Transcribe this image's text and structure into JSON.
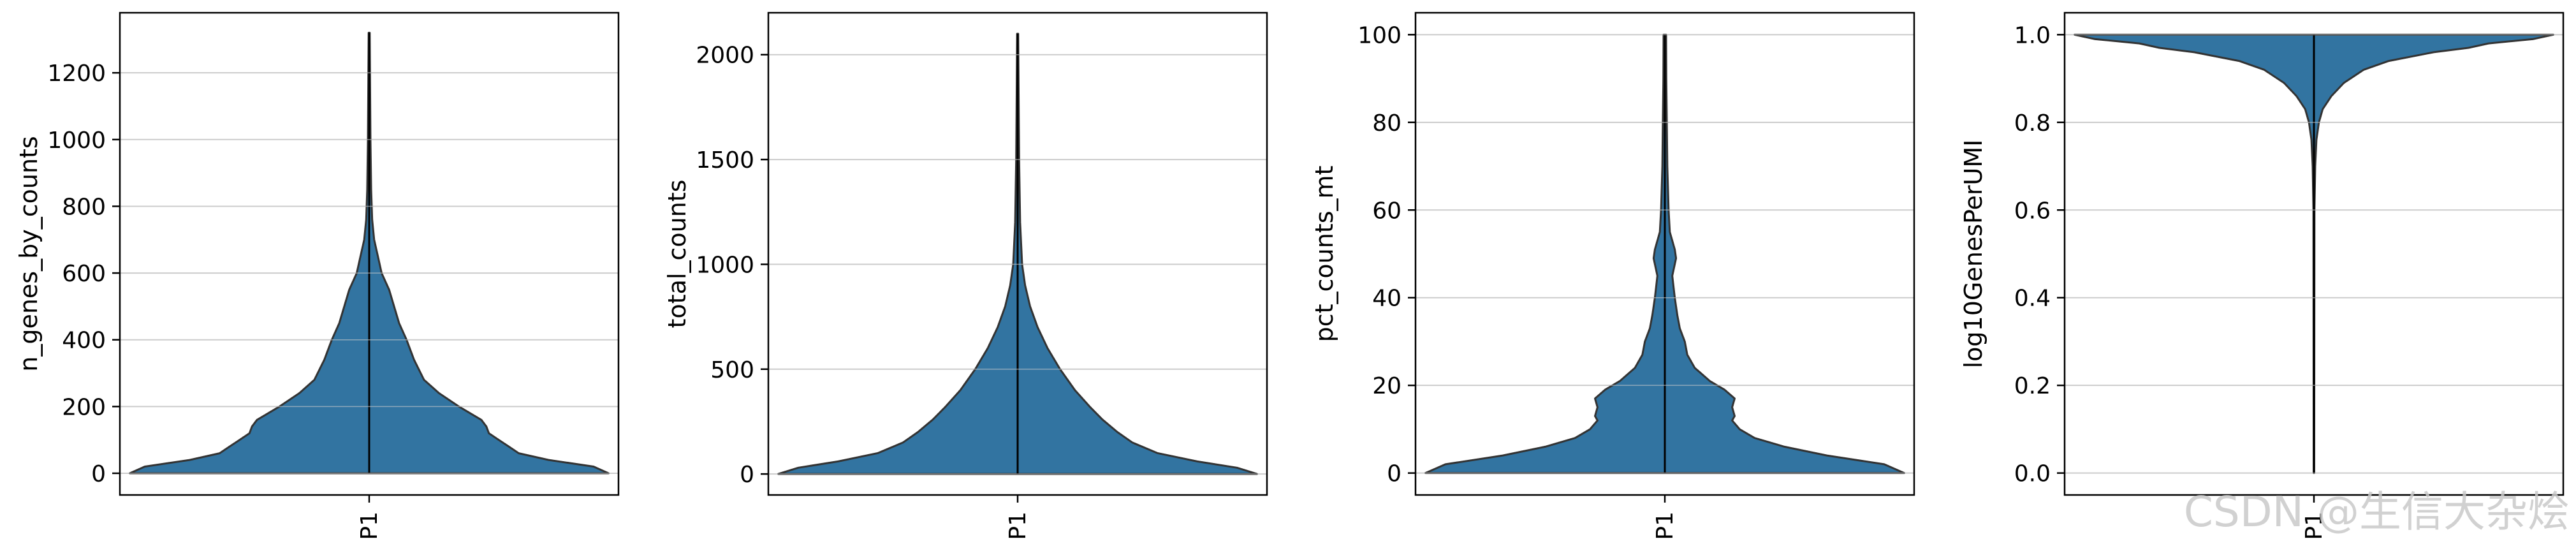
{
  "watermark": "CSDN @生信大杂烩",
  "colors": {
    "violin_fill": "#3274a1",
    "violin_edge": "#333333",
    "grid": "#cccccc",
    "axis": "#000000"
  },
  "chart_data": [
    {
      "type": "violin",
      "ylabel": "n_genes_by_counts",
      "categories": [
        "P1"
      ],
      "ylim": [
        -65,
        1380
      ],
      "yticks": [
        0,
        200,
        400,
        600,
        800,
        1000,
        1200
      ],
      "grid": true,
      "range": [
        0,
        1320
      ],
      "density": [
        [
          0,
          0.96
        ],
        [
          20,
          0.9
        ],
        [
          40,
          0.72
        ],
        [
          60,
          0.6
        ],
        [
          80,
          0.56
        ],
        [
          100,
          0.52
        ],
        [
          120,
          0.48
        ],
        [
          140,
          0.47
        ],
        [
          160,
          0.45
        ],
        [
          200,
          0.36
        ],
        [
          240,
          0.28
        ],
        [
          280,
          0.22
        ],
        [
          340,
          0.18
        ],
        [
          400,
          0.15
        ],
        [
          450,
          0.12
        ],
        [
          500,
          0.1
        ],
        [
          550,
          0.08
        ],
        [
          600,
          0.05
        ],
        [
          650,
          0.035
        ],
        [
          700,
          0.02
        ],
        [
          760,
          0.012
        ],
        [
          850,
          0.008
        ],
        [
          1000,
          0.005
        ],
        [
          1320,
          0.002
        ]
      ]
    },
    {
      "type": "violin",
      "ylabel": "total_counts",
      "categories": [
        "P1"
      ],
      "ylim": [
        -100,
        2200
      ],
      "yticks": [
        0,
        500,
        1000,
        1500,
        2000
      ],
      "grid": true,
      "range": [
        0,
        2100
      ],
      "density": [
        [
          0,
          0.96
        ],
        [
          30,
          0.88
        ],
        [
          60,
          0.72
        ],
        [
          100,
          0.56
        ],
        [
          150,
          0.46
        ],
        [
          200,
          0.4
        ],
        [
          260,
          0.34
        ],
        [
          320,
          0.29
        ],
        [
          400,
          0.23
        ],
        [
          500,
          0.17
        ],
        [
          600,
          0.12
        ],
        [
          700,
          0.08
        ],
        [
          800,
          0.05
        ],
        [
          900,
          0.03
        ],
        [
          1000,
          0.018
        ],
        [
          1200,
          0.01
        ],
        [
          1500,
          0.006
        ],
        [
          2100,
          0.002
        ]
      ]
    },
    {
      "type": "violin",
      "ylabel": "pct_counts_mt",
      "categories": [
        "P1"
      ],
      "ylim": [
        -5,
        105
      ],
      "yticks": [
        0,
        20,
        40,
        60,
        80,
        100
      ],
      "grid": true,
      "range": [
        0,
        100
      ],
      "density": [
        [
          0,
          0.96
        ],
        [
          2,
          0.88
        ],
        [
          4,
          0.65
        ],
        [
          6,
          0.48
        ],
        [
          8,
          0.36
        ],
        [
          10,
          0.3
        ],
        [
          12,
          0.27
        ],
        [
          13,
          0.28
        ],
        [
          15,
          0.27
        ],
        [
          17,
          0.28
        ],
        [
          19,
          0.24
        ],
        [
          21,
          0.18
        ],
        [
          24,
          0.12
        ],
        [
          27,
          0.09
        ],
        [
          30,
          0.08
        ],
        [
          33,
          0.06
        ],
        [
          36,
          0.05
        ],
        [
          40,
          0.04
        ],
        [
          45,
          0.03
        ],
        [
          49,
          0.045
        ],
        [
          51,
          0.04
        ],
        [
          55,
          0.02
        ],
        [
          60,
          0.015
        ],
        [
          70,
          0.01
        ],
        [
          80,
          0.008
        ],
        [
          90,
          0.006
        ],
        [
          100,
          0.005
        ]
      ]
    },
    {
      "type": "violin",
      "ylabel": "log10GenesPerUMI",
      "categories": [
        "P1"
      ],
      "ylim": [
        -0.05,
        1.05
      ],
      "yticks": [
        0.0,
        0.2,
        0.4,
        0.6,
        0.8,
        1.0
      ],
      "grid": true,
      "range": [
        0,
        1.0
      ],
      "density": [
        [
          0,
          0.001
        ],
        [
          0.6,
          0.002
        ],
        [
          0.7,
          0.005
        ],
        [
          0.76,
          0.01
        ],
        [
          0.8,
          0.02
        ],
        [
          0.83,
          0.035
        ],
        [
          0.86,
          0.07
        ],
        [
          0.89,
          0.12
        ],
        [
          0.92,
          0.2
        ],
        [
          0.94,
          0.3
        ],
        [
          0.96,
          0.48
        ],
        [
          0.97,
          0.62
        ],
        [
          0.98,
          0.7
        ],
        [
          0.99,
          0.88
        ],
        [
          1.0,
          0.96
        ]
      ]
    }
  ]
}
